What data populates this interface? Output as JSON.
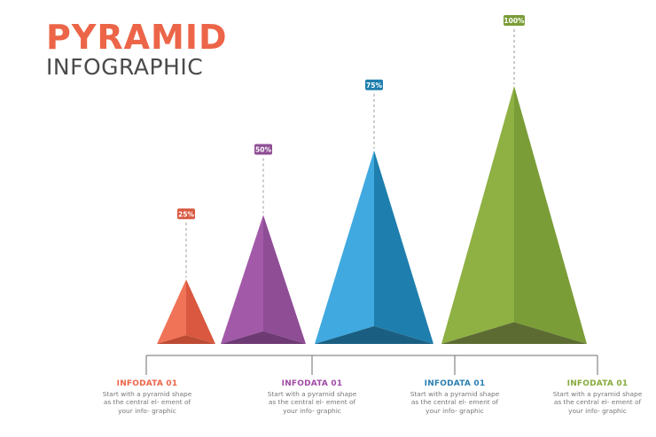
{
  "header": {
    "title": "PYRAMID",
    "subtitle": "INFOGRAPHIC"
  },
  "chart_data": {
    "type": "bar",
    "series": [
      {
        "label": "25%",
        "value": 25,
        "color": "#f07357",
        "shade": "#d9583f",
        "base": "#bd4a33"
      },
      {
        "label": "50%",
        "value": 50,
        "color": "#a25aa8",
        "shade": "#8e4d95",
        "base": "#6e3a74"
      },
      {
        "label": "75%",
        "value": 75,
        "color": "#3fa9e0",
        "shade": "#1e7fae",
        "base": "#1a5f82"
      },
      {
        "label": "100%",
        "value": 100,
        "color": "#8fb043",
        "shade": "#7a9d37",
        "base": "#5c6b32"
      }
    ],
    "ylim": [
      0,
      100
    ],
    "grid": false,
    "legend": "none"
  },
  "infodata": [
    {
      "title": "INFODATA 01",
      "desc": "Start with a pyramid shape as the central el- ement of your info- graphic",
      "color": "#ec6548"
    },
    {
      "title": "INFODATA 01",
      "desc": "Start with a pyramid shape as the central el- ement of your info- graphic",
      "color": "#a04ba6"
    },
    {
      "title": "INFODATA 01",
      "desc": "Start with a pyramid shape as the central el- ement of your info- graphic",
      "color": "#2a7fb0"
    },
    {
      "title": "INFODATA 01",
      "desc": "Start with a pyramid shape as the central el- ement of your info- graphic",
      "color": "#86ab3a"
    }
  ]
}
